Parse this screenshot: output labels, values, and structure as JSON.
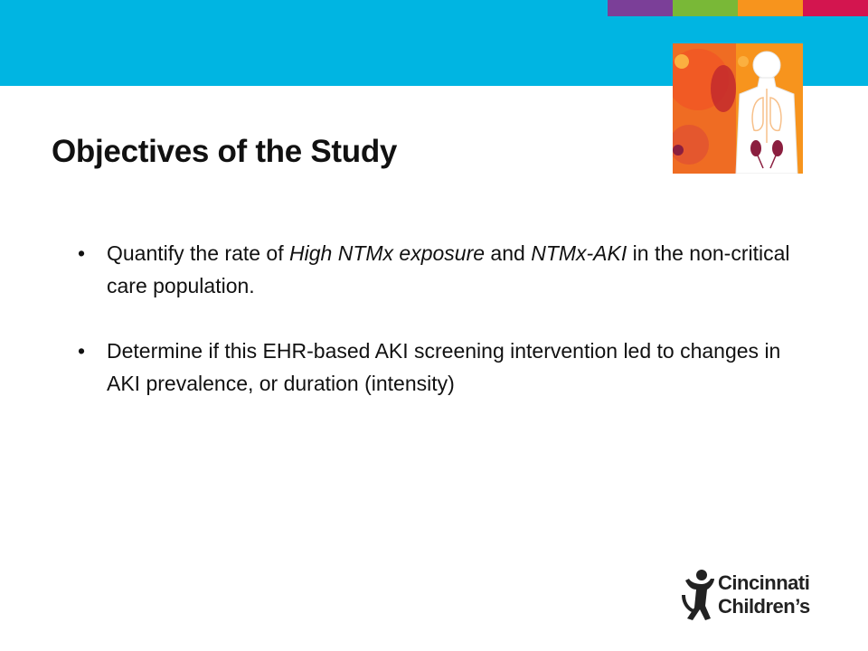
{
  "header": {
    "band_color": "#00b5e2",
    "strip_colors": [
      "#7b3f98",
      "#79b837",
      "#f7941d",
      "#d3154f"
    ]
  },
  "slide": {
    "title": "Objectives of the Study",
    "bullet_char": "•",
    "bullets": [
      {
        "segments": [
          "Quantify the rate of ",
          "High NTMx exposure",
          " and ",
          "NTMx-AKI",
          " in the non-critical care population."
        ]
      },
      {
        "segments": [
          "Determine if this EHR-based AKI screening intervention led to changes in AKI prevalence, or duration (intensity)"
        ]
      }
    ]
  },
  "logo": {
    "line1": "Cincinnati",
    "line2": "Children’s",
    "icon": "child-figure-icon"
  },
  "illustration": {
    "icon": "human-anatomy-kidneys-icon"
  }
}
